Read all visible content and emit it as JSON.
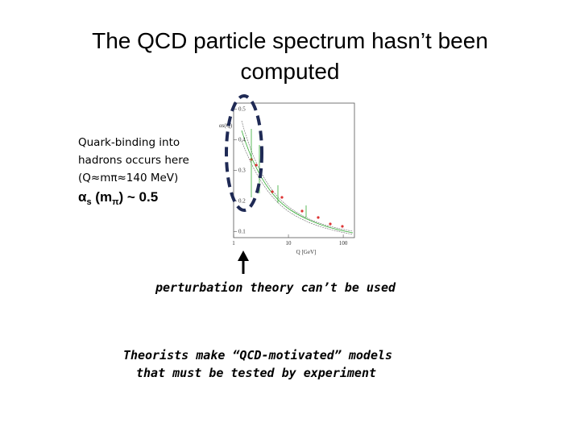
{
  "title_lines": [
    "The QCD particle spectrum hasn’t been",
    "computed"
  ],
  "note": {
    "lines": [
      "Quark-binding into",
      "hadrons occurs here",
      "(Q≈mπ≈140 MeV)"
    ],
    "alpha": {
      "symbol": "α",
      "sub": "s",
      "mid": " (m",
      "sub2": "π",
      "end": ") ~ 0.5"
    }
  },
  "figure": {
    "xlabel": "Q [GeV]",
    "ylabel": "αs(Q)",
    "xlim": [
      1,
      160
    ],
    "ylim": [
      0.08,
      0.52
    ],
    "xticks": [
      1,
      10,
      100
    ],
    "yticks": [
      0.1,
      0.2,
      0.3,
      0.4,
      0.5
    ]
  },
  "arrow_caption": "perturbation theory can’t be used",
  "footer_lines": [
    "Theorists make “QCD-motivated” models",
    "that must be tested by experiment"
  ]
}
